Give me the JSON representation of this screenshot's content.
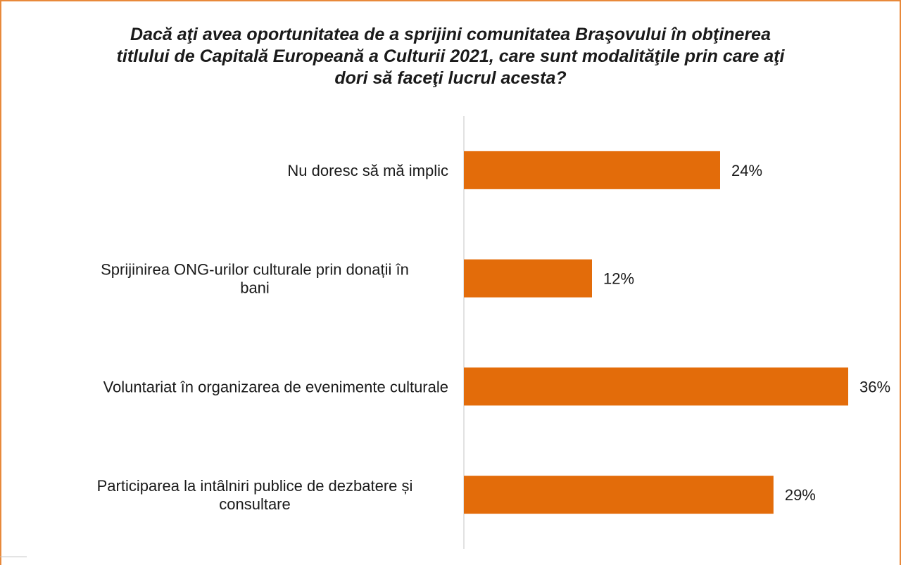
{
  "chart_data": {
    "type": "bar",
    "orientation": "horizontal",
    "title": "Dacă aţi avea oportunitatea de a sprijini comunitatea Braşovului în obţinerea titlului de Capitală Europeană a Culturii 2021, care sunt modalităţile prin care aţi dori să faceţi lucrul acesta?",
    "categories": [
      "Nu doresc să mă implic",
      "Sprijinirea ONG-urilor culturale prin donații în bani",
      "Voluntariat în organizarea de evenimente culturale",
      "Participarea la intâlniri publice de dezbatere și consultare"
    ],
    "values": [
      24,
      12,
      36,
      29
    ],
    "value_labels": [
      "24%",
      "12%",
      "36%",
      "29%"
    ],
    "unit": "%",
    "xlim": [
      0,
      36
    ],
    "grid": false,
    "legend": "none",
    "colors": {
      "bar": "#e36c0a",
      "axis": "#d9d9d9",
      "frame": "#e8893a",
      "text": "#1a1a1a"
    }
  }
}
